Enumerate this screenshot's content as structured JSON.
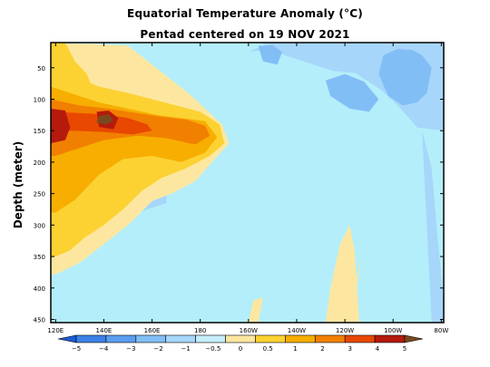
{
  "chart_data": {
    "type": "heatmap",
    "title": "Equatorial Temperature Anomaly (°C)",
    "subtitle": "Pentad centered on 19 NOV 2021",
    "ylabel": "Depth (meter)",
    "xlabel": "",
    "x_ticks": [
      "120E",
      "140E",
      "160E",
      "180",
      "160W",
      "140W",
      "120W",
      "100W",
      "80W"
    ],
    "x_tick_lon": [
      120,
      140,
      160,
      180,
      200,
      220,
      240,
      260,
      280
    ],
    "xlim": [
      118,
      281
    ],
    "y_ticks": [
      50,
      100,
      150,
      200,
      250,
      300,
      350,
      400,
      450
    ],
    "ylim": [
      455,
      10
    ],
    "colorbar": {
      "labels": [
        "−5",
        "−4",
        "−3",
        "−2",
        "−1",
        "−0.5",
        "0",
        "0.5",
        "1",
        "2",
        "3",
        "4",
        "5"
      ],
      "colors": [
        "#1e5ad6",
        "#3c82e6",
        "#5a9ef0",
        "#82bef6",
        "#a6d6fa",
        "#c6eefa",
        "#fde7a0",
        "#fcd232",
        "#f7ae00",
        "#f28000",
        "#e84800",
        "#b51a0c",
        "#7a4a1e"
      ]
    },
    "regions": [
      {
        "level": "-1",
        "lon": [
          185,
          205,
          215,
          235,
          250,
          262,
          272,
          281,
          281,
          270,
          260,
          245,
          232,
          222,
          212,
          200,
          188,
          184
        ],
        "depth": [
          10,
          10,
          30,
          55,
          60,
          62,
          60,
          110,
          10,
          10,
          10,
          10,
          10,
          10,
          10,
          10,
          10,
          10
        ]
      },
      {
        "level": "-1",
        "lon": [
          200,
          210,
          225,
          235,
          245,
          255,
          262,
          270,
          281,
          281,
          276,
          270,
          262,
          252,
          242,
          232,
          222,
          212,
          204
        ],
        "depth": [
          25,
          20,
          30,
          40,
          60,
          85,
          110,
          145,
          150,
          40,
          10,
          10,
          10,
          10,
          10,
          10,
          10,
          12,
          18
        ]
      },
      {
        "level": "-1",
        "lon": [
          272,
          276,
          278,
          281,
          281,
          276
        ],
        "depth": [
          150,
          210,
          300,
          420,
          455,
          455
        ]
      },
      {
        "level": "-1",
        "lon": [
          118,
          122,
          126,
          132,
          140,
          150,
          158,
          166,
          166,
          154,
          144,
          134,
          126,
          120,
          118
        ],
        "depth": [
          130,
          160,
          200,
          220,
          200,
          185,
          190,
          195,
          265,
          280,
          270,
          285,
          270,
          255,
          230
        ]
      },
      {
        "level": "-2",
        "lon": [
          256,
          262,
          268,
          272,
          276,
          274,
          270,
          264,
          258,
          254
        ],
        "depth": [
          30,
          20,
          22,
          30,
          50,
          90,
          105,
          110,
          95,
          60
        ]
      },
      {
        "level": "-2",
        "lon": [
          232,
          240,
          248,
          254,
          250,
          242,
          234
        ],
        "depth": [
          70,
          60,
          72,
          100,
          120,
          115,
          95
        ]
      },
      {
        "level": "-2",
        "lon": [
          204,
          210,
          214,
          212,
          206
        ],
        "depth": [
          15,
          14,
          25,
          45,
          40
        ]
      },
      {
        "level": "0",
        "lon": [
          118,
          125,
          135,
          150,
          165,
          175,
          182,
          189,
          192,
          186,
          178,
          168,
          160,
          150,
          140,
          130,
          122,
          118
        ],
        "depth": [
          10,
          12,
          12,
          15,
          60,
          90,
          115,
          140,
          170,
          195,
          230,
          250,
          262,
          300,
          330,
          360,
          375,
          380
        ]
      },
      {
        "level": "0",
        "lon": [
          232,
          234,
          238,
          242,
          244,
          246,
          240,
          236,
          232
        ],
        "depth": [
          455,
          400,
          330,
          300,
          340,
          455,
          455,
          455,
          455
        ]
      },
      {
        "level": "0",
        "lon": [
          200,
          202,
          206,
          204,
          200
        ],
        "depth": [
          455,
          420,
          415,
          455,
          455
        ]
      },
      {
        "level": "0",
        "lon": [
          238,
          244,
          247,
          244,
          240
        ],
        "depth": [
          455,
          400,
          350,
          420,
          455
        ]
      },
      {
        "level": "0.5",
        "lon": [
          118,
          126,
          138,
          150,
          160,
          170,
          180,
          188,
          190,
          184,
          174,
          164,
          156,
          148,
          140,
          132,
          126,
          120,
          118
        ],
        "depth": [
          40,
          60,
          80,
          90,
          100,
          110,
          120,
          140,
          170,
          190,
          210,
          225,
          245,
          275,
          300,
          320,
          340,
          350,
          350
        ]
      },
      {
        "level": "0.5",
        "lon": [
          118,
          124,
          128,
          133,
          136,
          132,
          126,
          122,
          118
        ],
        "depth": [
          10,
          10,
          40,
          60,
          90,
          120,
          140,
          160,
          160
        ]
      },
      {
        "level": "1",
        "lon": [
          118,
          126,
          138,
          150,
          162,
          172,
          182,
          187,
          182,
          172,
          160,
          148,
          138,
          128,
          120,
          118
        ],
        "depth": [
          80,
          90,
          105,
          115,
          125,
          130,
          135,
          160,
          185,
          200,
          190,
          195,
          220,
          260,
          280,
          280
        ]
      },
      {
        "level": "2",
        "lon": [
          118,
          130,
          142,
          154,
          164,
          174,
          182,
          184,
          178,
          166,
          154,
          140,
          128,
          120,
          118
        ],
        "depth": [
          100,
          110,
          115,
          122,
          128,
          132,
          142,
          158,
          172,
          162,
          158,
          165,
          180,
          190,
          190
        ]
      },
      {
        "level": "3",
        "lon": [
          118,
          130,
          140,
          150,
          158,
          160,
          152,
          140,
          128,
          118
        ],
        "depth": [
          120,
          122,
          124,
          130,
          140,
          150,
          156,
          152,
          150,
          150
        ]
      },
      {
        "level": "4",
        "lon": [
          118,
          124,
          126,
          124,
          118
        ],
        "depth": [
          115,
          118,
          145,
          165,
          170
        ]
      },
      {
        "level": "4",
        "lon": [
          137,
          142,
          146,
          144,
          138
        ],
        "depth": [
          120,
          118,
          130,
          148,
          144
        ]
      },
      {
        "level": "5",
        "lon": [
          138,
          142,
          144,
          141,
          137
        ],
        "depth": [
          127,
          124,
          134,
          140,
          137
        ]
      }
    ]
  }
}
